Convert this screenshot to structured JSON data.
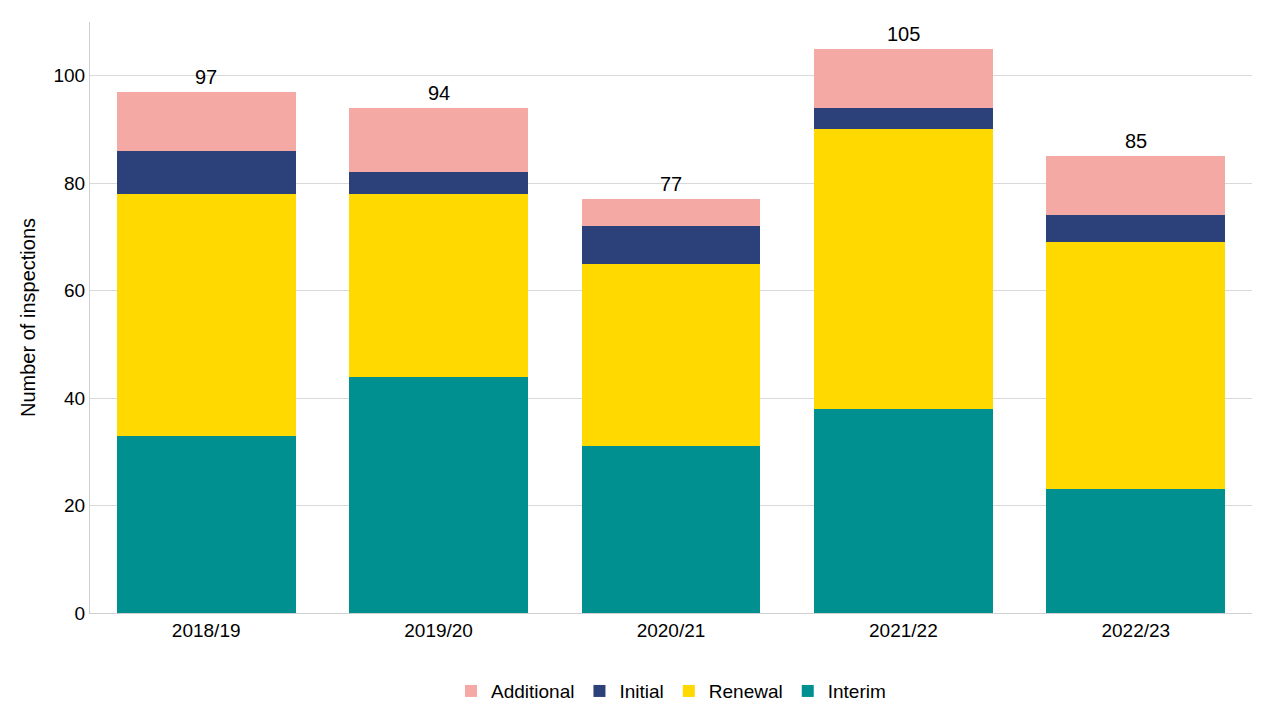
{
  "chart_data": {
    "type": "bar",
    "stacked": true,
    "y_label": "Number of inspections",
    "categories": [
      "2018/19",
      "2019/20",
      "2020/21",
      "2021/22",
      "2022/23"
    ],
    "series": [
      {
        "name": "Interim",
        "color": "#009090",
        "values": [
          33,
          44,
          31,
          38,
          23
        ]
      },
      {
        "name": "Renewal",
        "color": "#ffd900",
        "values": [
          45,
          34,
          34,
          52,
          46
        ]
      },
      {
        "name": "Initial",
        "color": "#2c417a",
        "values": [
          8,
          4,
          7,
          4,
          5
        ]
      },
      {
        "name": "Additional",
        "color": "#f5a9a4",
        "values": [
          11,
          12,
          5,
          11,
          11
        ]
      }
    ],
    "totals": [
      97,
      94,
      77,
      105,
      85
    ],
    "ylim": [
      0,
      110
    ],
    "yticks": [
      0,
      20,
      40,
      60,
      80,
      100
    ],
    "grid": true,
    "legend": "bottom"
  }
}
